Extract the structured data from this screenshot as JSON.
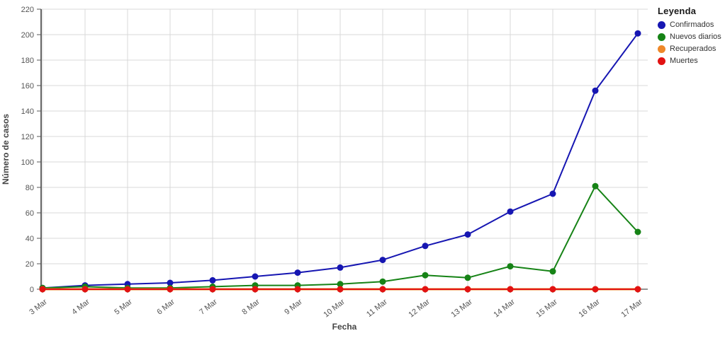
{
  "legend": {
    "title": "Leyenda"
  },
  "chart_data": {
    "type": "line",
    "title": "",
    "xlabel": "Fecha",
    "ylabel": "Número de casos",
    "x": [
      "3 Mar",
      "4 Mar",
      "5 Mar",
      "6 Mar",
      "7 Mar",
      "8 Mar",
      "9 Mar",
      "10 Mar",
      "11 Mar",
      "12 Mar",
      "13 Mar",
      "14 Mar",
      "15 Mar",
      "16 Mar",
      "17 Mar"
    ],
    "ylim": [
      0,
      220
    ],
    "ytick_step": 20,
    "grid": true,
    "legend_position": "right",
    "colors": {
      "grid": "#d9d9d9",
      "axis": "#555555",
      "tick_text": "#555555",
      "axis_title_text": "#444444"
    },
    "series": [
      {
        "name": "Confirmados",
        "color": "#1616b2",
        "values": [
          1,
          3,
          4,
          5,
          7,
          10,
          13,
          17,
          23,
          34,
          43,
          61,
          75,
          156,
          201
        ]
      },
      {
        "name": "Nuevos diarios",
        "color": "#168316",
        "values": [
          1,
          2,
          1,
          1,
          2,
          3,
          3,
          4,
          6,
          11,
          9,
          18,
          14,
          81,
          45
        ]
      },
      {
        "name": "Recuperados",
        "color": "#ee8829",
        "values": [
          0,
          0,
          0,
          0,
          0,
          0,
          0,
          0,
          0,
          0,
          0,
          0,
          0,
          0,
          0
        ]
      },
      {
        "name": "Muertes",
        "color": "#e21212",
        "values": [
          0,
          0,
          0,
          0,
          0,
          0,
          0,
          0,
          0,
          0,
          0,
          0,
          0,
          0,
          0
        ]
      }
    ]
  }
}
